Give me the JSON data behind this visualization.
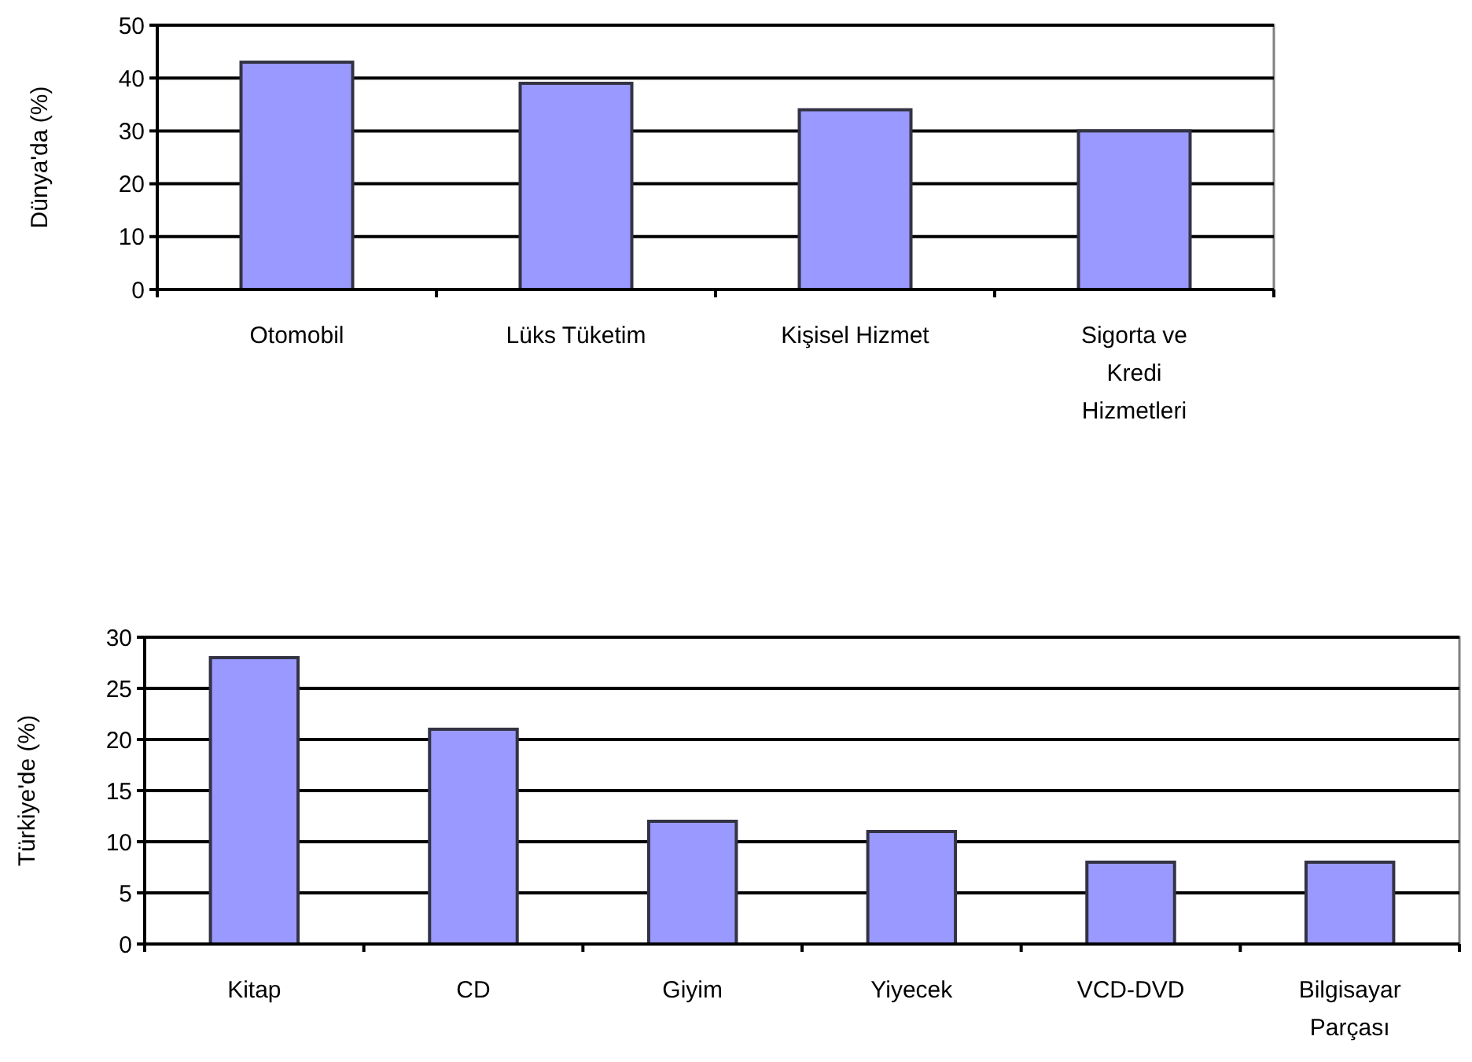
{
  "chart_data": [
    {
      "type": "bar",
      "ylabel": "Dünya'da (%)",
      "categories": [
        "Otomobil",
        "Lüks Tüketim",
        "Kişisel Hizmet",
        "Sigorta ve Kredi Hizmetleri"
      ],
      "values": [
        43,
        39,
        34,
        30
      ],
      "color": "#9999ff",
      "ylim": [
        0,
        50
      ],
      "yticks": [
        0,
        10,
        20,
        30,
        40,
        50
      ],
      "grid": "y"
    },
    {
      "type": "bar",
      "ylabel": "Türkiye'de (%)",
      "categories": [
        "Kitap",
        "CD",
        "Giyim",
        "Yiyecek",
        "VCD-DVD",
        "Bilgisayar Parçası"
      ],
      "values": [
        28,
        21,
        12,
        11,
        8,
        8
      ],
      "color": "#9999ff",
      "ylim": [
        0,
        30
      ],
      "yticks": [
        0,
        5,
        10,
        15,
        20,
        25,
        30
      ],
      "grid": "y"
    }
  ]
}
